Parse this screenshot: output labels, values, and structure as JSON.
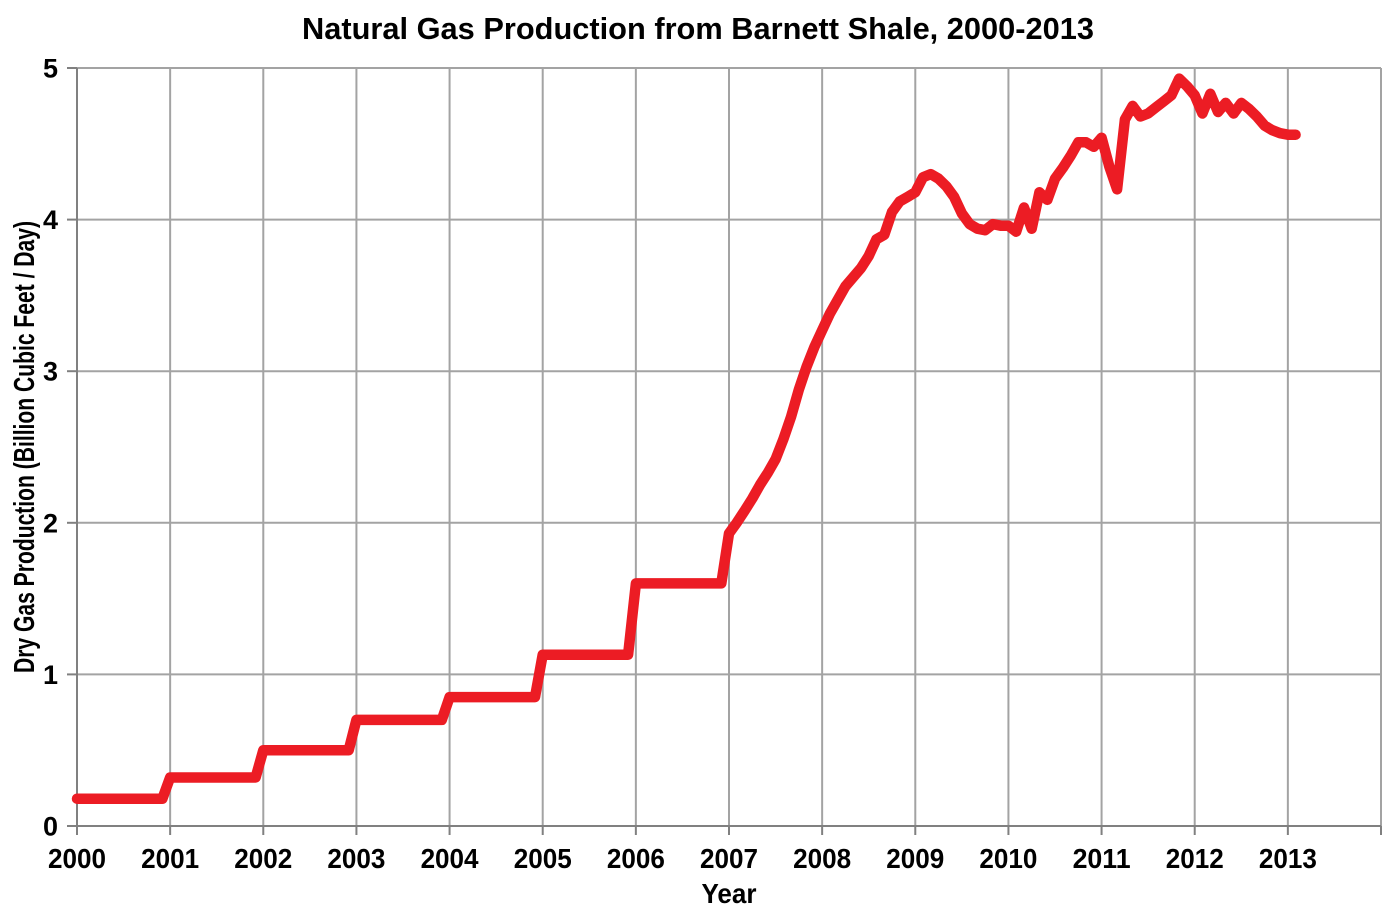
{
  "title": "Natural Gas Production from Barnett Shale, 2000-2013",
  "chart_data": {
    "type": "line",
    "title": "Natural Gas Production from Barnett Shale, 2000-2013",
    "xlabel": "Year",
    "ylabel": "Dry Gas Production (Billion Cubic Feet / Day)",
    "xlim": [
      2000,
      2014
    ],
    "ylim": [
      0,
      5
    ],
    "x_tick_years": [
      2000,
      2001,
      2002,
      2003,
      2004,
      2005,
      2006,
      2007,
      2008,
      2009,
      2010,
      2011,
      2012,
      2013
    ],
    "x_gridline_years": [
      2000,
      2001,
      2002,
      2003,
      2004,
      2005,
      2006,
      2007,
      2008,
      2009,
      2010,
      2011,
      2012,
      2013,
      2014
    ],
    "y_ticks": [
      0,
      1,
      2,
      3,
      4,
      5
    ],
    "grid": true,
    "legend": false,
    "line_color": "#ec1c24",
    "grid_color": "#a3a3a3",
    "axis_color": "#808080",
    "annual_values_2000_2006": {
      "2000": 0.18,
      "2001": 0.32,
      "2002": 0.5,
      "2003": 0.7,
      "2004": 0.85,
      "2005": 1.13,
      "2006": 1.6
    },
    "series": [
      {
        "name": "Dry gas production",
        "points": [
          [
            2000.0,
            0.18
          ],
          [
            2000.917,
            0.18
          ],
          [
            2001.0,
            0.32
          ],
          [
            2001.917,
            0.32
          ],
          [
            2002.0,
            0.5
          ],
          [
            2002.917,
            0.5
          ],
          [
            2003.0,
            0.7
          ],
          [
            2003.917,
            0.7
          ],
          [
            2004.0,
            0.85
          ],
          [
            2004.917,
            0.85
          ],
          [
            2005.0,
            1.13
          ],
          [
            2005.917,
            1.13
          ],
          [
            2006.0,
            1.6
          ],
          [
            2006.917,
            1.6
          ],
          [
            2007.0,
            1.93
          ],
          [
            2007.083,
            2.0
          ],
          [
            2007.167,
            2.08
          ],
          [
            2007.25,
            2.16
          ],
          [
            2007.333,
            2.25
          ],
          [
            2007.417,
            2.33
          ],
          [
            2007.5,
            2.42
          ],
          [
            2007.583,
            2.55
          ],
          [
            2007.667,
            2.7
          ],
          [
            2007.75,
            2.88
          ],
          [
            2007.833,
            3.03
          ],
          [
            2007.917,
            3.16
          ],
          [
            2008.0,
            3.27
          ],
          [
            2008.083,
            3.38
          ],
          [
            2008.167,
            3.47
          ],
          [
            2008.25,
            3.56
          ],
          [
            2008.333,
            3.62
          ],
          [
            2008.417,
            3.68
          ],
          [
            2008.5,
            3.76
          ],
          [
            2008.583,
            3.87
          ],
          [
            2008.667,
            3.9
          ],
          [
            2008.75,
            4.05
          ],
          [
            2008.833,
            4.12
          ],
          [
            2008.917,
            4.15
          ],
          [
            2009.0,
            4.18
          ],
          [
            2009.083,
            4.28
          ],
          [
            2009.167,
            4.3
          ],
          [
            2009.25,
            4.27
          ],
          [
            2009.333,
            4.22
          ],
          [
            2009.417,
            4.15
          ],
          [
            2009.5,
            4.04
          ],
          [
            2009.583,
            3.97
          ],
          [
            2009.667,
            3.94
          ],
          [
            2009.75,
            3.93
          ],
          [
            2009.833,
            3.97
          ],
          [
            2009.917,
            3.96
          ],
          [
            2010.0,
            3.96
          ],
          [
            2010.083,
            3.92
          ],
          [
            2010.167,
            4.08
          ],
          [
            2010.25,
            3.94
          ],
          [
            2010.333,
            4.18
          ],
          [
            2010.417,
            4.13
          ],
          [
            2010.5,
            4.27
          ],
          [
            2010.583,
            4.34
          ],
          [
            2010.667,
            4.42
          ],
          [
            2010.75,
            4.51
          ],
          [
            2010.833,
            4.51
          ],
          [
            2010.917,
            4.48
          ],
          [
            2011.0,
            4.54
          ],
          [
            2011.083,
            4.35
          ],
          [
            2011.167,
            4.2
          ],
          [
            2011.25,
            4.66
          ],
          [
            2011.333,
            4.75
          ],
          [
            2011.417,
            4.68
          ],
          [
            2011.5,
            4.7
          ],
          [
            2011.583,
            4.74
          ],
          [
            2011.667,
            4.78
          ],
          [
            2011.75,
            4.82
          ],
          [
            2011.833,
            4.93
          ],
          [
            2011.917,
            4.88
          ],
          [
            2012.0,
            4.82
          ],
          [
            2012.083,
            4.7
          ],
          [
            2012.167,
            4.83
          ],
          [
            2012.25,
            4.71
          ],
          [
            2012.333,
            4.77
          ],
          [
            2012.417,
            4.7
          ],
          [
            2012.5,
            4.77
          ],
          [
            2012.583,
            4.73
          ],
          [
            2012.667,
            4.68
          ],
          [
            2012.75,
            4.62
          ],
          [
            2012.833,
            4.59
          ],
          [
            2012.917,
            4.57
          ],
          [
            2013.0,
            4.56
          ],
          [
            2013.083,
            4.56
          ]
        ]
      }
    ]
  }
}
